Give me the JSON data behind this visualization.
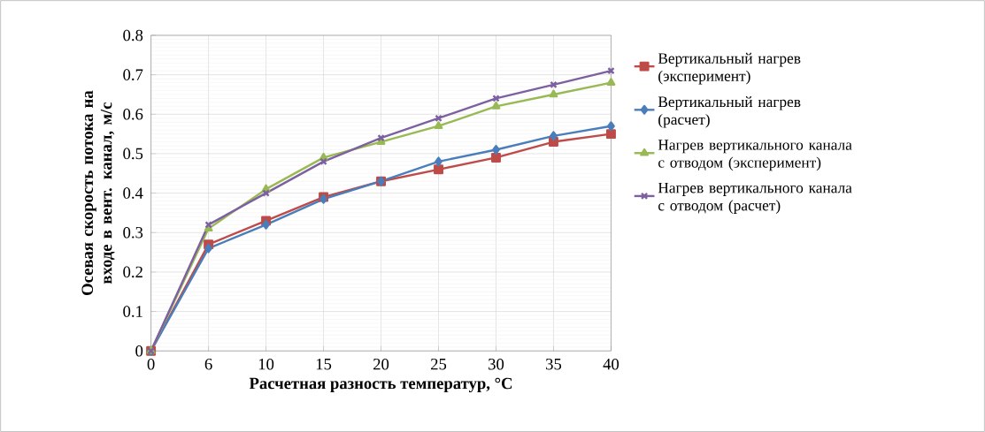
{
  "chart_data": {
    "type": "line",
    "xlabel": "Расчетная разность температур, °С",
    "ylabel": "Осевая скорость потока на входе в вент. канал, м/с",
    "categories": [
      "0",
      "6",
      "10",
      "15",
      "20",
      "25",
      "30",
      "35",
      "40"
    ],
    "series": [
      {
        "name": "Вертикальный нагрев (эксперимент)",
        "color": "#be4b48",
        "marker": "square",
        "values": [
          0,
          0.27,
          0.33,
          0.39,
          0.43,
          0.46,
          0.49,
          0.53,
          0.55
        ]
      },
      {
        "name": "Вертикальный нагрев (расчет)",
        "color": "#4a7ebb",
        "marker": "diamond",
        "values": [
          0,
          0.26,
          0.32,
          0.385,
          0.43,
          0.48,
          0.51,
          0.545,
          0.57
        ]
      },
      {
        "name": "Нагрев вертикального канала с отводом (эксперимент)",
        "color": "#98b954",
        "marker": "triangle",
        "values": [
          0,
          0.31,
          0.41,
          0.49,
          0.53,
          0.57,
          0.62,
          0.65,
          0.68
        ]
      },
      {
        "name": "Нагрев вертикального канала с отводом (расчет)",
        "color": "#7d60a0",
        "marker": "cross",
        "values": [
          0,
          0.32,
          0.4,
          0.48,
          0.54,
          0.59,
          0.64,
          0.675,
          0.71
        ]
      }
    ],
    "ylim": [
      0,
      0.8
    ],
    "yticks": [
      0,
      0.1,
      0.2,
      0.3,
      0.4,
      0.5,
      0.6,
      0.7,
      0.8
    ],
    "grid": true,
    "legend": "right",
    "line_style": "solid"
  }
}
